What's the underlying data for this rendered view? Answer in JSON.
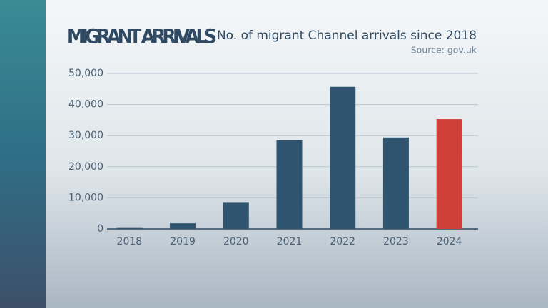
{
  "chart_data": {
    "type": "bar",
    "title": "MIGRANT ARRIVALS",
    "subtitle": "No. of migrant Channel arrivals since 2018",
    "source": "Source: gov.uk",
    "categories": [
      "2018",
      "2019",
      "2020",
      "2021",
      "2022",
      "2023",
      "2024"
    ],
    "values": [
      300,
      1800,
      8400,
      28500,
      45700,
      29400,
      35300
    ],
    "colors": [
      "#2f5470",
      "#2f5470",
      "#2f5470",
      "#2f5470",
      "#2f5470",
      "#2f5470",
      "#d0403a"
    ],
    "ylim": [
      0,
      50000
    ],
    "yticks": [
      0,
      {
        "value": 10000,
        "label": "10,000"
      },
      {
        "value": 20000,
        "label": "20,000"
      },
      {
        "value": 30000,
        "label": "30,000"
      },
      {
        "value": 40000,
        "label": "40,000"
      },
      {
        "value": 50000,
        "label": "50,000"
      }
    ],
    "grid": true
  }
}
